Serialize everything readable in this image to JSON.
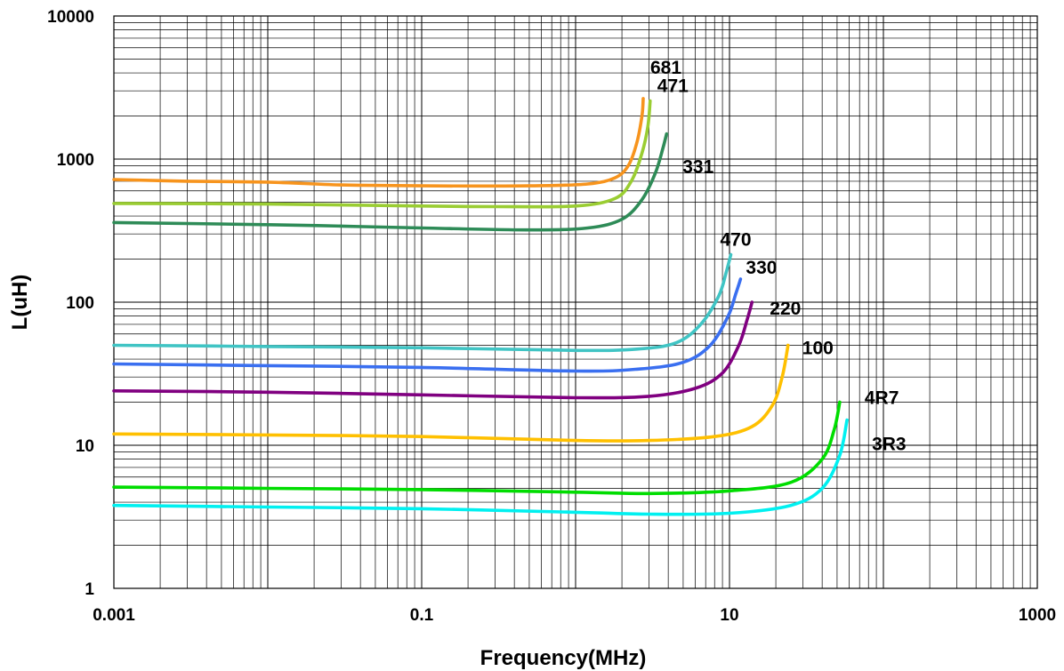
{
  "chart_data": {
    "type": "line",
    "xlabel": "Frequency(MHz)",
    "ylabel": "L(uH)",
    "xscale": "log",
    "yscale": "log",
    "xlim": [
      0.001,
      1000
    ],
    "ylim": [
      1,
      10000
    ],
    "grid": true,
    "legend": "none (series labelled next to curves)",
    "x_ticks": [
      "0.001",
      "0.1",
      "10",
      "1000"
    ],
    "y_ticks": [
      "1",
      "10",
      "100",
      "1000",
      "10000"
    ],
    "series": [
      {
        "name": "681",
        "color": "#F7941D",
        "points": [
          [
            0.001,
            720
          ],
          [
            0.003,
            700
          ],
          [
            0.01,
            690
          ],
          [
            0.03,
            660
          ],
          [
            0.1,
            650
          ],
          [
            0.5,
            650
          ],
          [
            1.2,
            670
          ],
          [
            1.8,
            740
          ],
          [
            2.2,
            900
          ],
          [
            2.5,
            1300
          ],
          [
            2.7,
            2000
          ],
          [
            2.75,
            2650
          ]
        ]
      },
      {
        "name": "471",
        "color": "#9ACD32",
        "points": [
          [
            0.001,
            490
          ],
          [
            0.01,
            485
          ],
          [
            0.1,
            470
          ],
          [
            0.3,
            465
          ],
          [
            1,
            470
          ],
          [
            1.8,
            530
          ],
          [
            2.3,
            700
          ],
          [
            2.7,
            1100
          ],
          [
            2.95,
            1700
          ],
          [
            3.05,
            2550
          ]
        ]
      },
      {
        "name": "331",
        "color": "#2E8B57",
        "points": [
          [
            0.001,
            360
          ],
          [
            0.01,
            348
          ],
          [
            0.03,
            340
          ],
          [
            0.1,
            330
          ],
          [
            0.5,
            320
          ],
          [
            1.2,
            330
          ],
          [
            2,
            380
          ],
          [
            2.7,
            520
          ],
          [
            3.3,
            800
          ],
          [
            3.7,
            1200
          ],
          [
            3.9,
            1500
          ]
        ]
      },
      {
        "name": "470",
        "color": "#40C4C4",
        "points": [
          [
            0.001,
            50
          ],
          [
            0.01,
            49
          ],
          [
            0.1,
            48
          ],
          [
            1,
            46
          ],
          [
            2.5,
            47
          ],
          [
            4.5,
            52
          ],
          [
            6.5,
            70
          ],
          [
            8.5,
            110
          ],
          [
            9.5,
            160
          ],
          [
            10.2,
            215
          ]
        ]
      },
      {
        "name": "330",
        "color": "#3A6FF0",
        "points": [
          [
            0.001,
            37
          ],
          [
            0.01,
            36
          ],
          [
            0.1,
            35
          ],
          [
            1,
            33
          ],
          [
            2.5,
            34
          ],
          [
            5,
            38
          ],
          [
            7.5,
            50
          ],
          [
            9.8,
            80
          ],
          [
            11,
            115
          ],
          [
            11.8,
            145
          ]
        ]
      },
      {
        "name": "220",
        "color": "#800080",
        "points": [
          [
            0.001,
            24
          ],
          [
            0.01,
            23.5
          ],
          [
            0.1,
            22.5
          ],
          [
            1,
            21.5
          ],
          [
            3,
            22
          ],
          [
            6,
            25
          ],
          [
            9,
            32
          ],
          [
            11.5,
            50
          ],
          [
            13,
            75
          ],
          [
            14,
            100
          ]
        ]
      },
      {
        "name": "100",
        "color": "#FFC000",
        "points": [
          [
            0.001,
            12
          ],
          [
            0.01,
            11.8
          ],
          [
            0.1,
            11.5
          ],
          [
            1,
            10.8
          ],
          [
            3,
            10.8
          ],
          [
            8,
            11.5
          ],
          [
            14,
            13.5
          ],
          [
            19,
            19
          ],
          [
            22,
            30
          ],
          [
            24,
            50
          ]
        ]
      },
      {
        "name": "4R7",
        "color": "#00DD00",
        "points": [
          [
            0.001,
            5.1
          ],
          [
            0.01,
            5.0
          ],
          [
            0.1,
            4.9
          ],
          [
            1,
            4.7
          ],
          [
            3,
            4.6
          ],
          [
            10,
            4.8
          ],
          [
            25,
            5.5
          ],
          [
            40,
            8
          ],
          [
            48,
            13
          ],
          [
            52,
            20
          ]
        ]
      },
      {
        "name": "3R3",
        "color": "#00F0F0",
        "points": [
          [
            0.001,
            3.8
          ],
          [
            0.01,
            3.7
          ],
          [
            0.1,
            3.6
          ],
          [
            1,
            3.4
          ],
          [
            3,
            3.3
          ],
          [
            10,
            3.35
          ],
          [
            25,
            3.8
          ],
          [
            40,
            5
          ],
          [
            52,
            8.5
          ],
          [
            58,
            15
          ]
        ]
      }
    ]
  }
}
